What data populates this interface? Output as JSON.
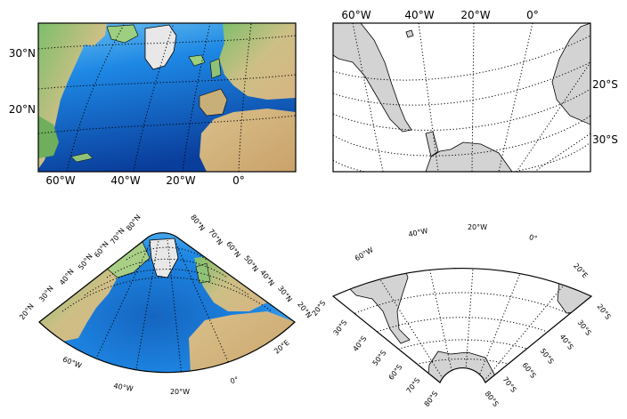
{
  "panels": [
    {
      "id": "top-left",
      "projection": "cylindrical",
      "style": "etopo-relief",
      "lat_labels": [
        "30°N",
        "20°N"
      ],
      "lon_labels": [
        "60°W",
        "40°W",
        "20°W",
        "0°"
      ]
    },
    {
      "id": "top-right",
      "projection": "polar-conic",
      "style": "grey-land",
      "lat_labels": [
        "20°S",
        "30°S"
      ],
      "lon_labels": [
        "60°W",
        "40°W",
        "20°W",
        "0°"
      ]
    },
    {
      "id": "bottom-left",
      "projection": "conic-fan",
      "style": "etopo-relief",
      "left_labels": [
        "20°N",
        "30°N",
        "40°N",
        "50°N",
        "60°N",
        "70°N",
        "80°N"
      ],
      "right_labels": [
        "80°N",
        "70°N",
        "60°N",
        "50°N",
        "40°N",
        "30°N",
        "20°N"
      ],
      "bottom_labels": [
        "60°W",
        "40°W",
        "20°W",
        "0°",
        "20°E"
      ],
      "right_extra": [
        "20°S"
      ]
    },
    {
      "id": "bottom-right",
      "projection": "conic-fan",
      "style": "grey-land",
      "top_labels": [
        "60°W",
        "40°W",
        "20°W",
        "0°",
        "20°E",
        "20°S"
      ],
      "left_labels": [
        "30°S",
        "40°S",
        "50°S",
        "60°S",
        "70°S",
        "80°S"
      ],
      "right_labels": [
        "80°S",
        "70°S",
        "60°S",
        "50°S",
        "40°S",
        "30°S"
      ]
    }
  ],
  "colors": {
    "ocean_deep": "#0d47b0",
    "ocean_mid": "#1e88e5",
    "ocean_shallow": "#8fd3f0",
    "land_low": "#7cbf6a",
    "land_mid": "#d9c28a",
    "land_high": "#b78a52",
    "ice": "#e8e8e8",
    "grey_land": "#d3d3d3"
  }
}
